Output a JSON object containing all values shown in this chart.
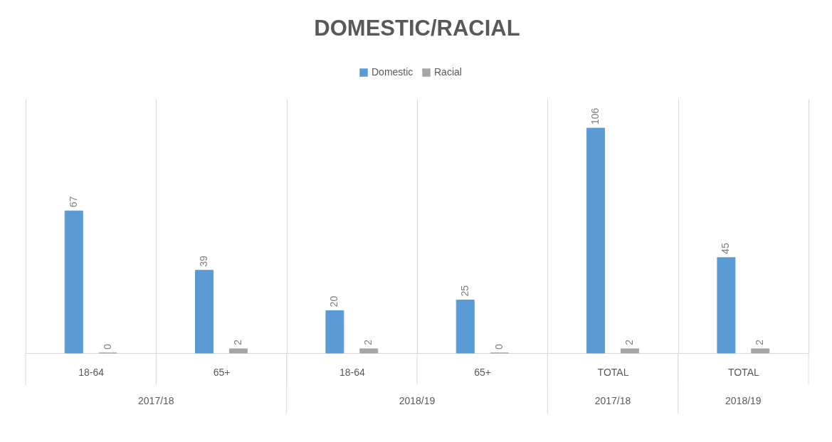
{
  "chart_data": {
    "type": "bar",
    "title": "DOMESTIC/RACIAL",
    "categories": [
      "18-64",
      "65+",
      "18-64",
      "65+",
      "TOTAL",
      "TOTAL"
    ],
    "series": [
      {
        "name": "Domestic",
        "color": "#5b9bd5",
        "values": [
          67,
          39,
          20,
          25,
          106,
          45
        ]
      },
      {
        "name": "Racial",
        "color": "#a5a5a5",
        "values": [
          0,
          2,
          2,
          0,
          2,
          2
        ]
      }
    ],
    "annotations": [
      "2017/18",
      "2018/19",
      "2017/18",
      "2018/19"
    ],
    "data_labels": true,
    "legend": "top",
    "grid": "x"
  }
}
